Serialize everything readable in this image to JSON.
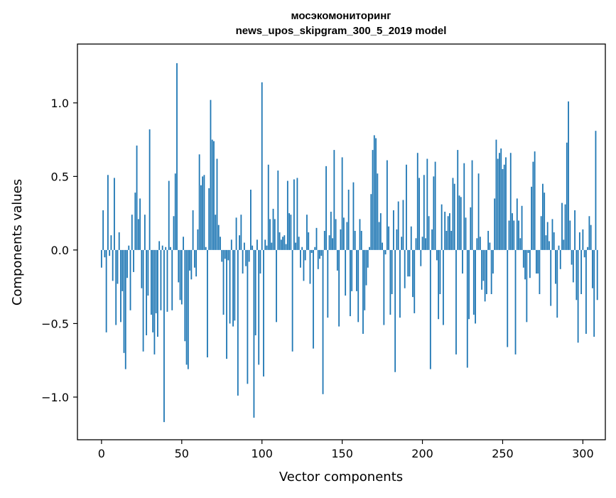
{
  "chart_data": {
    "type": "bar",
    "title_line1": "мосэкомониторинг",
    "title_line2": "news_upos_skipgram_300_5_2019 model",
    "xlabel": "Vector components",
    "ylabel": "Components values",
    "xlim": [
      -15,
      314
    ],
    "ylim": [
      -1.29,
      1.4
    ],
    "x_ticks": [
      0,
      50,
      100,
      150,
      200,
      250,
      300
    ],
    "x_tick_labels": [
      "0",
      "50",
      "100",
      "150",
      "200",
      "250",
      "300"
    ],
    "y_ticks": [
      -1.0,
      -0.5,
      0.0,
      0.5,
      1.0
    ],
    "y_tick_labels": [
      "−1.0",
      "−0.5",
      "0.0",
      "0.5",
      "1.0"
    ],
    "bar_color": "#1f77b4",
    "grid": false,
    "values": [
      -0.12,
      0.27,
      -0.05,
      -0.56,
      0.51,
      -0.04,
      0.1,
      -0.21,
      0.49,
      -0.51,
      -0.23,
      0.12,
      -0.49,
      -0.28,
      -0.7,
      -0.81,
      -0.19,
      0.03,
      -0.41,
      0.24,
      -0.15,
      0.39,
      0.71,
      0.21,
      0.35,
      -0.26,
      -0.69,
      0.24,
      -0.58,
      -0.31,
      0.82,
      -0.44,
      -0.56,
      -0.71,
      -0.43,
      -0.59,
      0.06,
      -0.41,
      0.03,
      -1.17,
      0.02,
      -0.42,
      0.47,
      0.02,
      -0.41,
      0.23,
      0.52,
      1.27,
      -0.22,
      -0.34,
      -0.37,
      0.09,
      -0.62,
      -0.78,
      -0.81,
      -0.14,
      -0.2,
      0.27,
      -0.12,
      -0.18,
      0.14,
      0.65,
      0.44,
      0.5,
      0.51,
      0.02,
      -0.73,
      0.42,
      1.02,
      0.75,
      0.74,
      0.24,
      0.62,
      0.17,
      0.09,
      -0.08,
      -0.44,
      -0.06,
      -0.74,
      -0.07,
      -0.5,
      0.07,
      -0.52,
      -0.48,
      0.22,
      -0.99,
      0.1,
      0.24,
      -0.16,
      0.05,
      -0.11,
      -0.91,
      -0.08,
      0.41,
      0.03,
      -1.14,
      -0.58,
      0.07,
      -0.78,
      -0.16,
      1.14,
      -0.86,
      0.07,
      0.03,
      0.58,
      0.21,
      0.05,
      0.28,
      0.21,
      -0.49,
      0.54,
      0.12,
      0.07,
      0.09,
      0.1,
      0.04,
      0.47,
      0.25,
      0.24,
      -0.69,
      0.48,
      0.05,
      0.49,
      0.09,
      -0.12,
      0.02,
      -0.21,
      -0.07,
      0.24,
      0.12,
      -0.23,
      -0.02,
      -0.67,
      0.02,
      0.15,
      -0.13,
      -0.06,
      -0.04,
      -0.98,
      0.13,
      0.57,
      -0.46,
      0.1,
      0.26,
      0.08,
      0.68,
      0.21,
      -0.14,
      -0.52,
      0.14,
      0.63,
      0.22,
      -0.31,
      0.19,
      0.41,
      -0.45,
      -0.28,
      0.46,
      0.13,
      -0.28,
      -0.49,
      0.21,
      0.13,
      -0.57,
      -0.41,
      -0.24,
      -0.12,
      0.02,
      0.38,
      0.68,
      0.78,
      0.76,
      0.52,
      0.19,
      0.25,
      0.05,
      -0.51,
      -0.03,
      0.61,
      0.16,
      -0.44,
      -0.3,
      0.27,
      -0.83,
      0.14,
      0.33,
      -0.46,
      0.09,
      0.34,
      -0.26,
      0.58,
      -0.18,
      -0.18,
      0.16,
      -0.32,
      -0.43,
      0.08,
      0.66,
      0.49,
      -0.11,
      0.09,
      0.51,
      0.08,
      0.62,
      0.23,
      -0.81,
      0.14,
      0.5,
      0.6,
      -0.07,
      -0.47,
      -0.3,
      0.31,
      -0.51,
      0.26,
      0.13,
      0.23,
      0.25,
      0.13,
      0.49,
      0.45,
      -0.71,
      0.68,
      0.37,
      0.36,
      -0.16,
      0.59,
      0.22,
      -0.8,
      -0.47,
      0.29,
      0.61,
      -0.44,
      -0.5,
      0.08,
      0.52,
      0.09,
      -0.27,
      -0.21,
      -0.35,
      -0.3,
      0.13,
      0.05,
      -0.3,
      -0.16,
      0.35,
      0.75,
      0.62,
      0.66,
      0.69,
      0.55,
      0.58,
      0.63,
      -0.66,
      0.2,
      0.66,
      0.25,
      0.2,
      -0.71,
      0.35,
      0.2,
      0.08,
      0.3,
      -0.12,
      -0.2,
      -0.49,
      -0.02,
      -0.19,
      0.43,
      0.6,
      0.67,
      -0.16,
      -0.16,
      -0.3,
      0.23,
      0.45,
      0.39,
      0.1,
      0.19,
      0.06,
      -0.38,
      0.21,
      0.12,
      -0.23,
      -0.46,
      0.03,
      -0.13,
      0.32,
      0.07,
      0.31,
      0.73,
      1.01,
      0.2,
      -0.1,
      -0.22,
      0.27,
      -0.34,
      -0.63,
      0.12,
      -0.3,
      0.14,
      -0.05,
      -0.57,
      0.02,
      0.23,
      0.17,
      -0.26,
      -0.59,
      0.81,
      -0.34
    ]
  }
}
